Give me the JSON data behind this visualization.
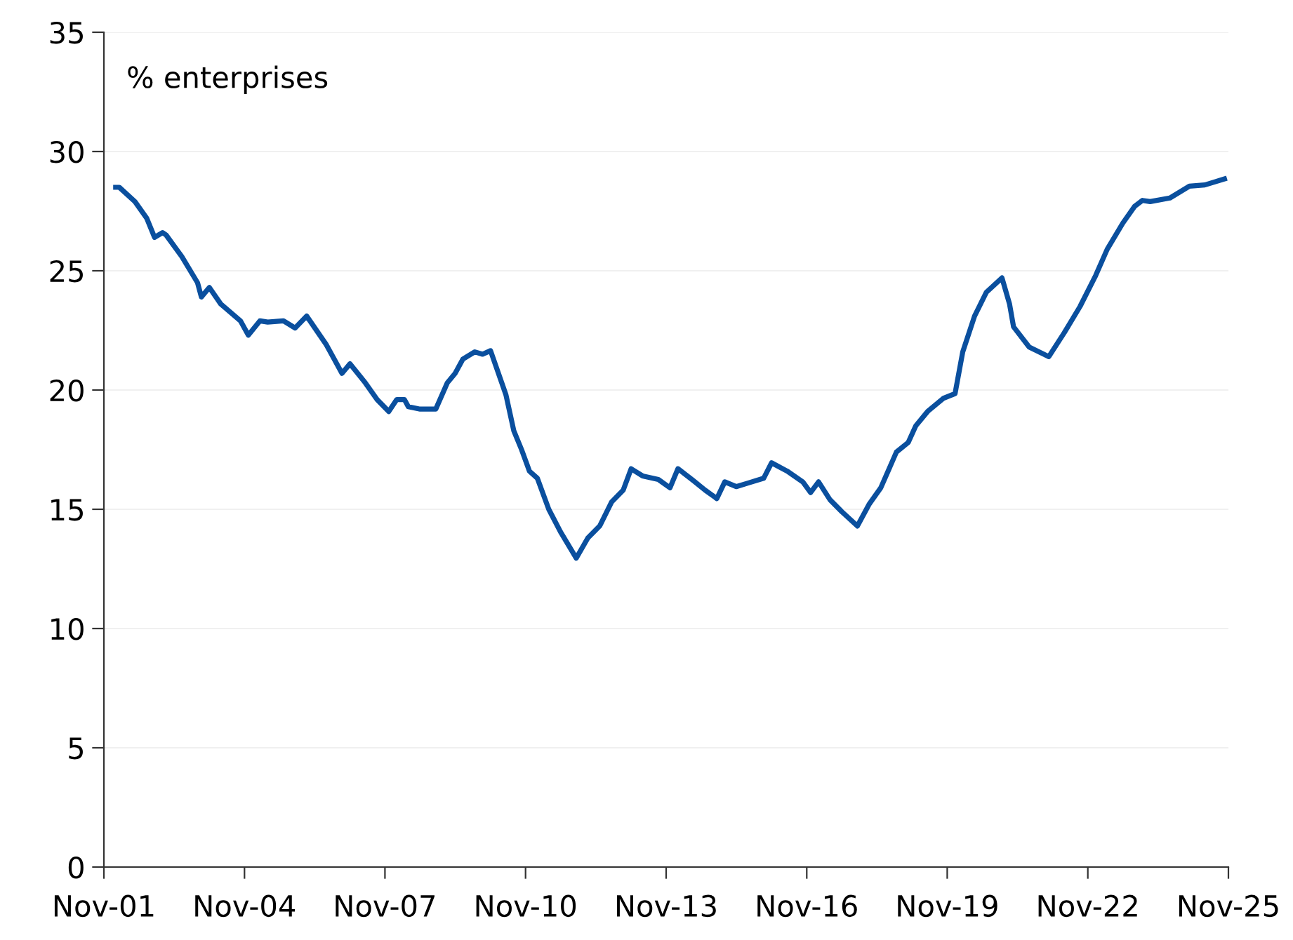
{
  "chart_data": {
    "type": "line",
    "ylabel": "% enterprises",
    "x": [
      "2002-02",
      "2002-03",
      "2002-07",
      "2002-10",
      "2002-12",
      "2003-02",
      "2003-03",
      "2003-07",
      "2003-11",
      "2003-12",
      "2004-02",
      "2004-05",
      "2004-10",
      "2004-12",
      "2005-03",
      "2005-05",
      "2005-09",
      "2005-12",
      "2006-03",
      "2006-08",
      "2006-12",
      "2007-02",
      "2007-06",
      "2007-09",
      "2007-12",
      "2008-02",
      "2008-04",
      "2008-05",
      "2008-08",
      "2008-12",
      "2009-03",
      "2009-05",
      "2009-07",
      "2009-10",
      "2009-12",
      "2010-02",
      "2010-06",
      "2010-08",
      "2010-10",
      "2010-12",
      "2011-02",
      "2011-05",
      "2011-08",
      "2011-12",
      "2012-03",
      "2012-06",
      "2012-09",
      "2012-12",
      "2013-02",
      "2013-05",
      "2013-09",
      "2013-12",
      "2014-02",
      "2014-06",
      "2014-09",
      "2014-12",
      "2015-02",
      "2015-05",
      "2015-08",
      "2015-12",
      "2016-02",
      "2016-06",
      "2016-10",
      "2016-12",
      "2017-02",
      "2017-05",
      "2017-08",
      "2017-12",
      "2018-03",
      "2018-06",
      "2018-10",
      "2019-01",
      "2019-03",
      "2019-06",
      "2019-10",
      "2020-01",
      "2020-03",
      "2020-06",
      "2020-09",
      "2021-01",
      "2021-03",
      "2021-04",
      "2021-08",
      "2022-01",
      "2022-05",
      "2022-09",
      "2023-01",
      "2023-04",
      "2023-08",
      "2023-11",
      "2024-01",
      "2024-03",
      "2024-08",
      "2025-01",
      "2025-05",
      "2025-10"
    ],
    "series": [
      {
        "color": "#0a4f9e",
        "values": [
          28.5,
          28.5,
          27.9,
          27.2,
          26.4,
          26.6,
          26.5,
          25.6,
          24.5,
          23.9,
          24.3,
          23.6,
          22.9,
          22.3,
          22.9,
          22.85,
          22.9,
          22.6,
          23.1,
          21.9,
          20.7,
          21.1,
          20.3,
          19.6,
          19.1,
          19.6,
          19.6,
          19.3,
          19.2,
          19.2,
          20.3,
          20.7,
          21.3,
          21.6,
          21.5,
          21.65,
          19.8,
          18.3,
          17.5,
          16.6,
          16.3,
          15.0,
          14.05,
          12.95,
          13.8,
          14.3,
          15.3,
          15.8,
          16.7,
          16.4,
          16.25,
          15.9,
          16.7,
          16.2,
          15.8,
          15.45,
          16.15,
          15.95,
          16.1,
          16.3,
          16.95,
          16.6,
          16.15,
          15.7,
          16.15,
          15.4,
          14.9,
          14.3,
          15.2,
          15.9,
          17.4,
          17.8,
          18.5,
          19.1,
          19.65,
          19.85,
          21.6,
          23.1,
          24.1,
          24.7,
          23.6,
          22.65,
          21.8,
          21.4,
          22.4,
          23.5,
          24.8,
          25.9,
          27.0,
          27.7,
          27.95,
          27.9,
          28.05,
          28.55,
          28.6,
          28.85
        ]
      }
    ],
    "xlim": [
      "2001-11",
      "2025-11"
    ],
    "xticks": [
      {
        "value": "2001-11",
        "label": "Nov-01"
      },
      {
        "value": "2004-11",
        "label": "Nov-04"
      },
      {
        "value": "2007-11",
        "label": "Nov-07"
      },
      {
        "value": "2010-11",
        "label": "Nov-10"
      },
      {
        "value": "2013-11",
        "label": "Nov-13"
      },
      {
        "value": "2016-11",
        "label": "Nov-16"
      },
      {
        "value": "2019-11",
        "label": "Nov-19"
      },
      {
        "value": "2022-11",
        "label": "Nov-22"
      },
      {
        "value": "2025-11",
        "label": "Nov-25"
      }
    ],
    "ylim": [
      0,
      35
    ],
    "yticks": [
      0,
      5,
      10,
      15,
      20,
      25,
      30,
      35
    ],
    "grid": "y",
    "legend": false,
    "marker": "none",
    "line_style": "solid"
  }
}
